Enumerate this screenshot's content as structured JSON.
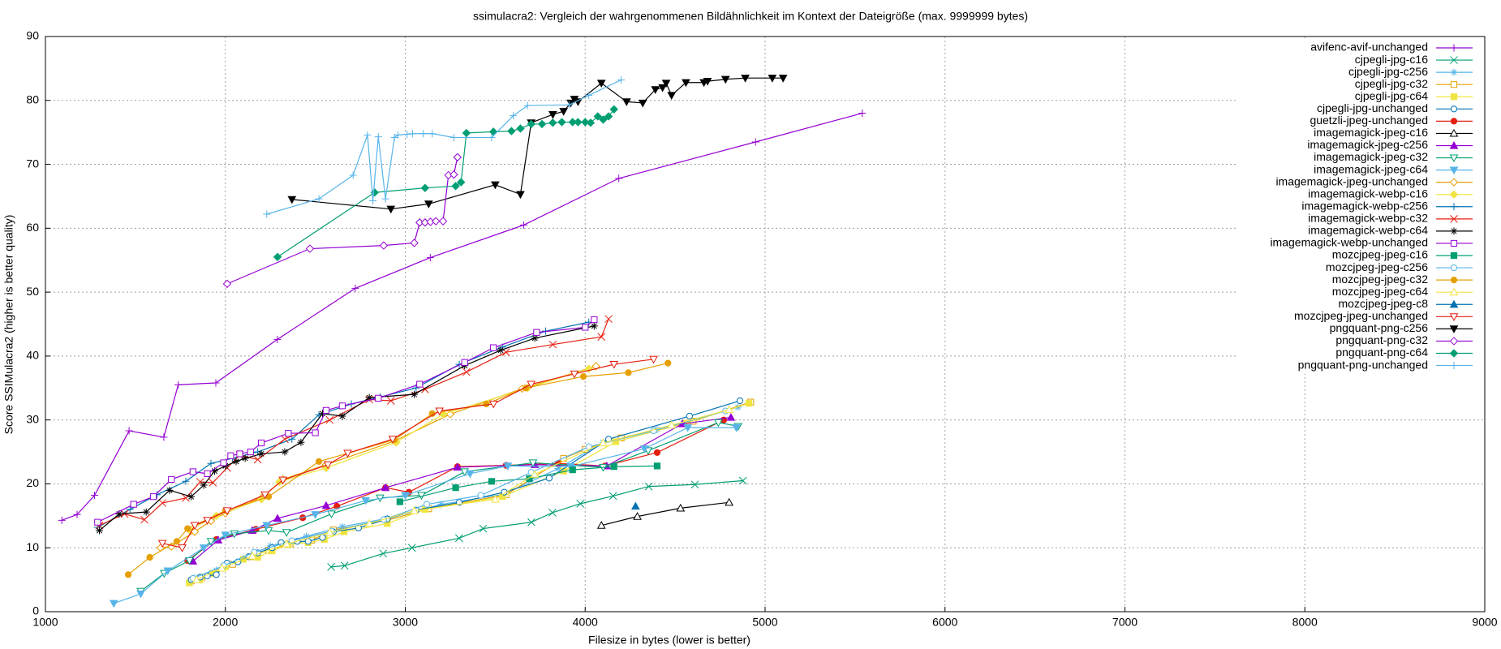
{
  "chart_data": {
    "type": "line",
    "title": "ssimulacra2: Vergleich der wahrgenommenen Bildähnlichkeit im Kontext der Dateigröße (max. 9999999 bytes)",
    "x_label": "Filesize in bytes (lower is better)",
    "y_label": "Score SSIMulacra2 (higher is better quality)",
    "xlim": [
      1000,
      9000
    ],
    "xticks": [
      1000,
      2000,
      3000,
      4000,
      5000,
      6000,
      7000,
      8000,
      9000
    ],
    "ylim": [
      0,
      90
    ],
    "yticks": [
      0,
      10,
      20,
      30,
      40,
      50,
      60,
      70,
      80,
      90
    ],
    "grid": true,
    "legend": "top-right",
    "series": [
      {
        "name": "avifenc-avif-unchanged",
        "color": "#9400d3",
        "x": [
          1091,
          1176,
          1273,
          1465,
          1658,
          1738,
          1947,
          2289,
          2722,
          3139,
          3658,
          4187,
          4947,
          5540
        ],
        "y": [
          14.3,
          15.2,
          18.2,
          28.3,
          27.3,
          35.5,
          35.8,
          42.6,
          50.6,
          55.4,
          60.5,
          67.8,
          73.5,
          78.0
        ]
      },
      {
        "name": "cjpegli-jpg-c16",
        "color": "#009e73",
        "x": [
          2588,
          2663,
          2877,
          3037,
          3299,
          3433,
          3701,
          3818,
          3973,
          4155,
          4353,
          4610,
          4877
        ],
        "y": [
          7.0,
          7.2,
          9.1,
          10.0,
          11.5,
          13.0,
          14.0,
          15.5,
          16.9,
          18.1,
          19.6,
          19.9,
          20.5
        ]
      },
      {
        "name": "cjpegli-jpg-c256",
        "color": "#56b4e9",
        "x": [
          1830,
          1950,
          2100,
          2250,
          2450,
          2650,
          2900,
          3200,
          3550,
          3850,
          4100,
          4400,
          4850
        ],
        "y": [
          5.3,
          6.5,
          8.3,
          10.3,
          11.8,
          13.3,
          14.6,
          16.8,
          18.4,
          22.4,
          26.5,
          28.5,
          32.0
        ]
      },
      {
        "name": "cjpegli-jpg-c32",
        "color": "#e69f00",
        "x": [
          1810,
          1870,
          1940,
          2040,
          2140,
          2240,
          2360,
          2480,
          2600,
          2900,
          3130,
          3560,
          3880,
          4000,
          4200,
          4600,
          4920
        ],
        "y": [
          4.8,
          5.4,
          6.0,
          7.4,
          8.6,
          9.6,
          10.6,
          11.2,
          12.8,
          14.3,
          16.1,
          18.3,
          24.0,
          25.4,
          27.2,
          29.8,
          32.8
        ]
      },
      {
        "name": "cjpegli-jpg-c64",
        "color": "#f0e442",
        "x": [
          1800,
          1860,
          1930,
          2000,
          2100,
          2180,
          2260,
          2350,
          2460,
          2550,
          2660,
          2900,
          3110,
          3540,
          3880,
          4170,
          4560,
          4910
        ],
        "y": [
          4.5,
          5.0,
          6.0,
          7.0,
          8.2,
          8.5,
          9.5,
          10.5,
          10.8,
          11.3,
          12.5,
          13.8,
          16.0,
          18.0,
          22.0,
          26.6,
          29.5,
          32.6
        ]
      },
      {
        "name": "cjpegli-jpg-unchanged",
        "color": "#0072b2",
        "x": [
          1810,
          1860,
          1900,
          1950,
          2010,
          2070,
          2130,
          2180,
          2260,
          2310,
          2400,
          2460,
          2540,
          2600,
          2740,
          2900,
          3060,
          3300,
          3550,
          3800,
          4130,
          4580,
          4860
        ],
        "y": [
          5.0,
          5.4,
          5.6,
          5.8,
          7.6,
          7.8,
          8.6,
          9.2,
          10.0,
          10.8,
          11.0,
          11.0,
          11.6,
          12.5,
          13.1,
          14.5,
          15.9,
          17.1,
          18.7,
          20.9,
          27.0,
          30.6,
          33.0
        ]
      },
      {
        "name": "guetzli-jpeg-unchanged",
        "color": "#e51e10",
        "x": [
          1790,
          1950,
          2170,
          2430,
          2620,
          2890,
          3020,
          3290,
          3560,
          3850,
          4110,
          4400,
          4770
        ],
        "y": [
          8.0,
          11.3,
          12.9,
          14.7,
          16.5,
          19.4,
          18.7,
          22.7,
          22.9,
          23.2,
          22.8,
          24.9,
          30.0
        ]
      },
      {
        "name": "imagemagick-jpeg-c16",
        "color": "#000000",
        "x": [
          4090,
          4290,
          4530,
          4800
        ],
        "y": [
          13.5,
          14.9,
          16.2,
          17.1
        ]
      },
      {
        "name": "imagemagick-jpeg-c256",
        "color": "#9400d3",
        "x": [
          1820,
          1960,
          2150,
          2290,
          2560,
          2890,
          3290,
          3720,
          4120,
          4540,
          4810
        ],
        "y": [
          7.9,
          11.2,
          12.7,
          14.6,
          16.6,
          19.4,
          22.6,
          23.0,
          22.8,
          29.4,
          30.4
        ]
      },
      {
        "name": "imagemagick-jpeg-c32",
        "color": "#009e73",
        "x": [
          1530,
          1660,
          1800,
          1920,
          2050,
          2240,
          2340,
          2590,
          2860,
          3090,
          3330,
          3710,
          4100,
          4350,
          4740,
          4850
        ],
        "y": [
          3.2,
          6.0,
          8.0,
          11.0,
          12.2,
          12.7,
          12.4,
          15.3,
          17.8,
          18.2,
          21.9,
          23.3,
          22.6,
          25.2,
          29.6,
          29.0
        ]
      },
      {
        "name": "imagemagick-jpeg-c64",
        "color": "#56b4e9",
        "x": [
          1380,
          1530,
          1680,
          1880,
          2000,
          2230,
          2500,
          2780,
          3000,
          3360,
          3570,
          3920,
          4330,
          4570,
          4840
        ],
        "y": [
          1.3,
          2.8,
          6.4,
          10.0,
          12.0,
          13.5,
          15.2,
          17.4,
          18.2,
          21.6,
          22.8,
          22.7,
          25.5,
          28.8,
          28.8
        ]
      },
      {
        "name": "imagemagick-jpeg-unchanged",
        "color": "#e69f00",
        "x": [
          1640,
          1700,
          1830,
          1920,
          2000,
          2210,
          2320,
          2560,
          2940,
          3250,
          3650,
          4060
        ],
        "y": [
          10.0,
          10.2,
          12.5,
          14.2,
          15.4,
          18.0,
          20.7,
          23.0,
          26.7,
          30.9,
          34.9,
          38.4
        ]
      },
      {
        "name": "imagemagick-webp-c16",
        "color": "#f0e442",
        "x": [
          1800,
          1950,
          2200,
          2300,
          2560,
          2950,
          3210,
          3680,
          4020
        ],
        "y": [
          12.8,
          15.0,
          17.6,
          20.3,
          22.5,
          26.5,
          30.9,
          35.0,
          38.0
        ]
      },
      {
        "name": "imagemagick-webp-c256",
        "color": "#0072b2",
        "x": [
          1290,
          1470,
          1620,
          1780,
          1920,
          2040,
          2180,
          2370,
          2520,
          2700,
          2860,
          3060,
          3300,
          3540,
          3780,
          4020
        ],
        "y": [
          13.2,
          16.0,
          18.3,
          20.4,
          23.2,
          24.0,
          25.0,
          27.0,
          30.8,
          32.5,
          33.6,
          35.0,
          38.7,
          41.4,
          43.9,
          45.3
        ]
      },
      {
        "name": "imagemagick-webp-c32",
        "color": "#e51e10",
        "x": [
          1300,
          1440,
          1550,
          1650,
          1780,
          1860,
          1930,
          2010,
          2080,
          2180,
          2330,
          2580,
          2800,
          2920,
          3110,
          3340,
          3560,
          3820,
          4090,
          4130
        ],
        "y": [
          13.5,
          15.3,
          14.4,
          17.0,
          17.8,
          20.3,
          20.2,
          22.5,
          24.5,
          23.8,
          27.0,
          30.0,
          33.2,
          33.0,
          34.8,
          37.5,
          40.6,
          41.8,
          43.0,
          45.8
        ]
      },
      {
        "name": "imagemagick-webp-c64",
        "color": "#000000",
        "x": [
          1300,
          1410,
          1560,
          1690,
          1810,
          1880,
          1940,
          2000,
          2060,
          2110,
          2200,
          2330,
          2420,
          2540,
          2650,
          2800,
          3050,
          3330,
          3530,
          3720,
          4050
        ],
        "y": [
          12.7,
          15.3,
          15.6,
          19.0,
          18.0,
          19.8,
          22.0,
          22.8,
          23.5,
          24.0,
          24.7,
          25.0,
          26.5,
          31.0,
          30.6,
          33.5,
          34.0,
          38.5,
          40.9,
          42.8,
          44.7
        ]
      },
      {
        "name": "imagemagick-webp-unchanged",
        "color": "#9400d3",
        "x": [
          1290,
          1490,
          1600,
          1700,
          1820,
          1900,
          1990,
          2030,
          2080,
          2140,
          2200,
          2350,
          2500,
          2560,
          2650,
          2850,
          3080,
          3330,
          3490,
          3730,
          4000,
          4050
        ],
        "y": [
          14.0,
          16.8,
          18.0,
          20.7,
          21.9,
          21.6,
          23.3,
          24.4,
          24.7,
          25.0,
          26.4,
          27.9,
          28.0,
          31.5,
          32.2,
          33.4,
          35.6,
          39.0,
          41.3,
          43.7,
          44.5,
          45.7
        ]
      },
      {
        "name": "mozcjpeg-jpeg-c16",
        "color": "#009e73",
        "x": [
          2970,
          3280,
          3480,
          3690,
          3930,
          4160,
          4400
        ],
        "y": [
          17.2,
          19.4,
          20.4,
          20.8,
          22.2,
          22.7,
          22.8
        ]
      },
      {
        "name": "mozcjpeg-jpeg-c256",
        "color": "#56b4e9",
        "x": [
          1820,
          1990,
          2160,
          2370,
          2590,
          2880,
          3120,
          3420,
          3700,
          4020,
          4380,
          4780
        ],
        "y": [
          5.2,
          7.2,
          9.3,
          11.1,
          12.6,
          14.4,
          16.8,
          18.2,
          21.8,
          25.8,
          28.3,
          31.4
        ]
      },
      {
        "name": "mozcjpeg-jpeg-c32",
        "color": "#e69f00",
        "x": [
          1460,
          1580,
          1730,
          1790,
          2000,
          2240,
          2520,
          2940,
          3150,
          3450,
          3670,
          3990,
          4240,
          4460
        ],
        "y": [
          5.8,
          8.5,
          11.0,
          13.0,
          15.8,
          18.0,
          23.5,
          26.9,
          31.0,
          32.5,
          35.0,
          36.8,
          37.4,
          38.9
        ]
      },
      {
        "name": "mozcjpeg-jpeg-c64",
        "color": "#f0e442",
        "x": [
          1840,
          1980,
          2150,
          2340,
          2580,
          2800,
          3050,
          3500,
          3720,
          4100,
          4480,
          4800
        ],
        "y": [
          5.0,
          6.8,
          8.7,
          10.6,
          12.4,
          13.8,
          15.8,
          17.6,
          21.5,
          26.4,
          29.2,
          31.6
        ]
      },
      {
        "name": "mozcjpeg-jpeg-c8",
        "color": "#0072b2",
        "x": [
          4280
        ],
        "y": [
          16.5
        ]
      },
      {
        "name": "mozcjpeg-jpeg-unchanged",
        "color": "#e51e10",
        "x": [
          1650,
          1760,
          1830,
          1900,
          2010,
          2220,
          2320,
          2570,
          2680,
          2930,
          3190,
          3490,
          3700,
          3940,
          4160,
          4380
        ],
        "y": [
          10.7,
          10.0,
          13.5,
          14.3,
          15.8,
          18.3,
          20.6,
          23.0,
          24.8,
          27.0,
          31.4,
          32.5,
          35.6,
          37.2,
          38.7,
          39.5
        ]
      },
      {
        "name": "pngquant-png-c256",
        "color": "#000000",
        "x": [
          2370,
          2920,
          3130,
          3500,
          3640,
          3700,
          3820,
          3880,
          3920,
          3940,
          3960,
          4090,
          4230,
          4320,
          4390,
          4430,
          4450,
          4480,
          4560,
          4660,
          4680,
          4780,
          4890,
          5040,
          5100
        ],
        "y": [
          64.5,
          63.0,
          63.8,
          66.8,
          65.3,
          76.5,
          77.8,
          78.3,
          79.6,
          80.2,
          79.8,
          82.7,
          79.8,
          79.6,
          81.7,
          82.0,
          82.7,
          80.8,
          82.8,
          82.8,
          83.0,
          83.3,
          83.5,
          83.5,
          83.5
        ]
      },
      {
        "name": "pngquant-png-c32",
        "color": "#9400d3",
        "x": [
          2010,
          2470,
          2880,
          3050,
          3080,
          3110,
          3140,
          3170,
          3210,
          3240,
          3270,
          3290
        ],
        "y": [
          51.3,
          56.8,
          57.3,
          57.7,
          60.9,
          60.9,
          61.0,
          61.1,
          61.1,
          68.3,
          68.4,
          71.1
        ]
      },
      {
        "name": "pngquant-png-c64",
        "color": "#009e73",
        "x": [
          2290,
          2830,
          3110,
          3280,
          3310,
          3340,
          3490,
          3590,
          3640,
          3700,
          3760,
          3820,
          3870,
          3930,
          3960,
          4000,
          4030,
          4070,
          4100,
          4130,
          4160
        ],
        "y": [
          55.5,
          65.6,
          66.3,
          66.6,
          67.2,
          74.9,
          75.1,
          75.2,
          75.6,
          76.3,
          76.3,
          76.5,
          76.6,
          76.6,
          76.6,
          76.6,
          76.5,
          77.5,
          77.0,
          77.5,
          78.6
        ]
      },
      {
        "name": "pngquant-png-unchanged",
        "color": "#56b4e9",
        "x": [
          2230,
          2520,
          2710,
          2790,
          2820,
          2850,
          2890,
          2940,
          2960,
          3010,
          3040,
          3100,
          3150,
          3270,
          3480,
          3600,
          3680,
          3910,
          4020,
          4200
        ],
        "y": [
          62.2,
          64.6,
          68.3,
          74.6,
          64.3,
          74.3,
          64.6,
          74.2,
          74.6,
          74.7,
          74.8,
          74.8,
          74.8,
          74.2,
          74.2,
          77.6,
          79.2,
          79.3,
          80.8,
          83.2
        ]
      }
    ]
  }
}
